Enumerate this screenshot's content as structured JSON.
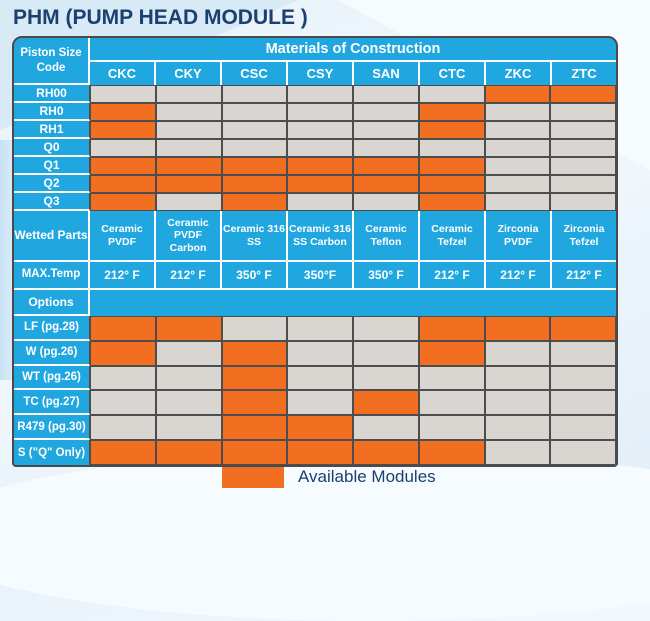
{
  "title": "PHM (PUMP HEAD MODULE )",
  "table": {
    "corner_header": "Piston Size Code",
    "materials_header": "Materials of Construction",
    "columns": [
      "CKC",
      "CKY",
      "CSC",
      "CSY",
      "SAN",
      "CTC",
      "ZKC",
      "ZTC"
    ],
    "piston_rows": [
      {
        "label": "RH00",
        "available": [
          0,
          0,
          0,
          0,
          0,
          0,
          1,
          1
        ]
      },
      {
        "label": "RH0",
        "available": [
          1,
          0,
          0,
          0,
          0,
          1,
          0,
          0
        ]
      },
      {
        "label": "RH1",
        "available": [
          1,
          0,
          0,
          0,
          0,
          1,
          0,
          0
        ]
      },
      {
        "label": "Q0",
        "available": [
          0,
          0,
          0,
          0,
          0,
          0,
          0,
          0
        ]
      },
      {
        "label": "Q1",
        "available": [
          1,
          1,
          1,
          1,
          1,
          1,
          0,
          0
        ]
      },
      {
        "label": "Q2",
        "available": [
          1,
          1,
          1,
          1,
          1,
          1,
          0,
          0
        ]
      },
      {
        "label": "Q3",
        "available": [
          1,
          0,
          1,
          0,
          0,
          1,
          0,
          0
        ]
      }
    ],
    "wetted_parts": {
      "label": "Wetted Parts",
      "values": [
        "Ceramic PVDF",
        "Ceramic PVDF Carbon",
        "Ceramic 316 SS",
        "Ceramic 316 SS Carbon",
        "Ceramic Teflon",
        "Ceramic Tefzel",
        "Zirconia PVDF",
        "Zirconia Tefzel"
      ]
    },
    "max_temp": {
      "label": "MAX.Temp",
      "values": [
        "212° F",
        "212° F",
        "350° F",
        "350°F",
        "350° F",
        "212° F",
        "212° F",
        "212° F"
      ]
    },
    "options_header": "Options",
    "option_rows": [
      {
        "label": "LF (pg.28)",
        "available": [
          1,
          1,
          0,
          0,
          0,
          1,
          1,
          1
        ]
      },
      {
        "label": "W (pg.26)",
        "available": [
          1,
          0,
          1,
          0,
          0,
          1,
          0,
          0
        ]
      },
      {
        "label": "WT (pg.26)",
        "available": [
          0,
          0,
          1,
          0,
          0,
          0,
          0,
          0
        ]
      },
      {
        "label": "TC (pg.27)",
        "available": [
          0,
          0,
          1,
          0,
          1,
          0,
          0,
          0
        ]
      },
      {
        "label": "R479 (pg.30)",
        "available": [
          0,
          0,
          1,
          1,
          0,
          0,
          0,
          0
        ]
      },
      {
        "label": "S (\"Q\" Only)",
        "available": [
          1,
          1,
          1,
          1,
          1,
          1,
          0,
          0
        ]
      }
    ]
  },
  "legend": {
    "swatch_color": "#f26f21",
    "label": "Available Modules"
  },
  "colors": {
    "blue": "#21a7e0",
    "orange": "#f26f21",
    "gray": "#d9d5d0",
    "navy": "#1b406f",
    "cell_border": "#4d4d4d"
  }
}
